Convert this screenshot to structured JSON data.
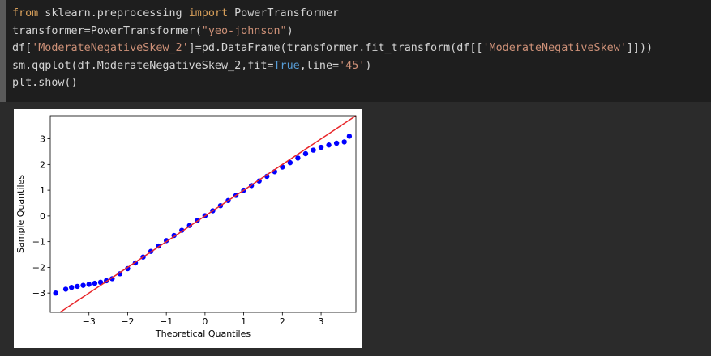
{
  "code": {
    "lines": [
      {
        "tokens": [
          {
            "text": "from",
            "color": "#d9a05b"
          },
          {
            "text": " sklearn.preprocessing ",
            "color": "#d4d4d4"
          },
          {
            "text": "import",
            "color": "#d9a05b"
          },
          {
            "text": " PowerTransformer",
            "color": "#d4d4d4"
          }
        ]
      },
      {
        "tokens": [
          {
            "text": "transformer=PowerTransformer(",
            "color": "#d4d4d4"
          },
          {
            "text": "\"yeo-johnson\"",
            "color": "#ce9178"
          },
          {
            "text": ")",
            "color": "#d4d4d4"
          }
        ]
      },
      {
        "tokens": [
          {
            "text": "df[",
            "color": "#d4d4d4"
          },
          {
            "text": "'ModerateNegativeSkew_2'",
            "color": "#ce9178"
          },
          {
            "text": "]=pd.DataFrame(transformer.fit_transform(df[[",
            "color": "#d4d4d4"
          },
          {
            "text": "'ModerateNegativeSkew'",
            "color": "#ce9178"
          },
          {
            "text": "]]))",
            "color": "#d4d4d4"
          }
        ]
      },
      {
        "tokens": [
          {
            "text": "sm.qqplot(df.ModerateNegativeSkew_2,fit=",
            "color": "#d4d4d4"
          },
          {
            "text": "True",
            "color": "#569cd6"
          },
          {
            "text": ",line=",
            "color": "#d4d4d4"
          },
          {
            "text": "'45'",
            "color": "#ce9178"
          },
          {
            "text": ")",
            "color": "#d4d4d4"
          }
        ]
      },
      {
        "tokens": [
          {
            "text": "plt.show()",
            "color": "#d4d4d4"
          }
        ]
      }
    ]
  },
  "chart_data": {
    "type": "scatter",
    "xlabel": "Theoretical Quantiles",
    "ylabel": "Sample Quantiles",
    "xlim": [
      -4.0,
      3.9
    ],
    "ylim": [
      -3.75,
      3.9
    ],
    "xticks": [
      {
        "value": -3,
        "label": "−3"
      },
      {
        "value": -2,
        "label": "−2"
      },
      {
        "value": -1,
        "label": "−1"
      },
      0,
      1,
      2,
      3
    ],
    "yticks": [
      {
        "value": -3,
        "label": "−3"
      },
      {
        "value": -2,
        "label": "−2"
      },
      {
        "value": -1,
        "label": "−1"
      },
      0,
      1,
      2,
      3
    ],
    "reference_line_color": "#e8262a",
    "series": [
      {
        "color": "#0000ff",
        "x": [
          -3.86,
          -3.6,
          -3.45,
          -3.3,
          -3.15,
          -3.0,
          -2.85,
          -2.7,
          -2.55,
          -2.4,
          -2.2,
          -2.0,
          -1.8,
          -1.6,
          -1.4,
          -1.2,
          -1.0,
          -0.8,
          -0.6,
          -0.4,
          -0.2,
          0,
          0.2,
          0.4,
          0.6,
          0.8,
          1.0,
          1.2,
          1.4,
          1.6,
          1.8,
          2.0,
          2.2,
          2.4,
          2.6,
          2.8,
          3.0,
          3.2,
          3.4,
          3.6,
          3.73
        ],
        "values": [
          -3.0,
          -2.85,
          -2.78,
          -2.74,
          -2.7,
          -2.66,
          -2.62,
          -2.58,
          -2.52,
          -2.44,
          -2.25,
          -2.05,
          -1.83,
          -1.6,
          -1.38,
          -1.17,
          -0.96,
          -0.76,
          -0.56,
          -0.37,
          -0.18,
          0.01,
          0.2,
          0.4,
          0.6,
          0.8,
          1.0,
          1.18,
          1.36,
          1.54,
          1.72,
          1.9,
          2.07,
          2.25,
          2.42,
          2.56,
          2.67,
          2.76,
          2.83,
          2.88,
          3.1
        ]
      }
    ]
  }
}
